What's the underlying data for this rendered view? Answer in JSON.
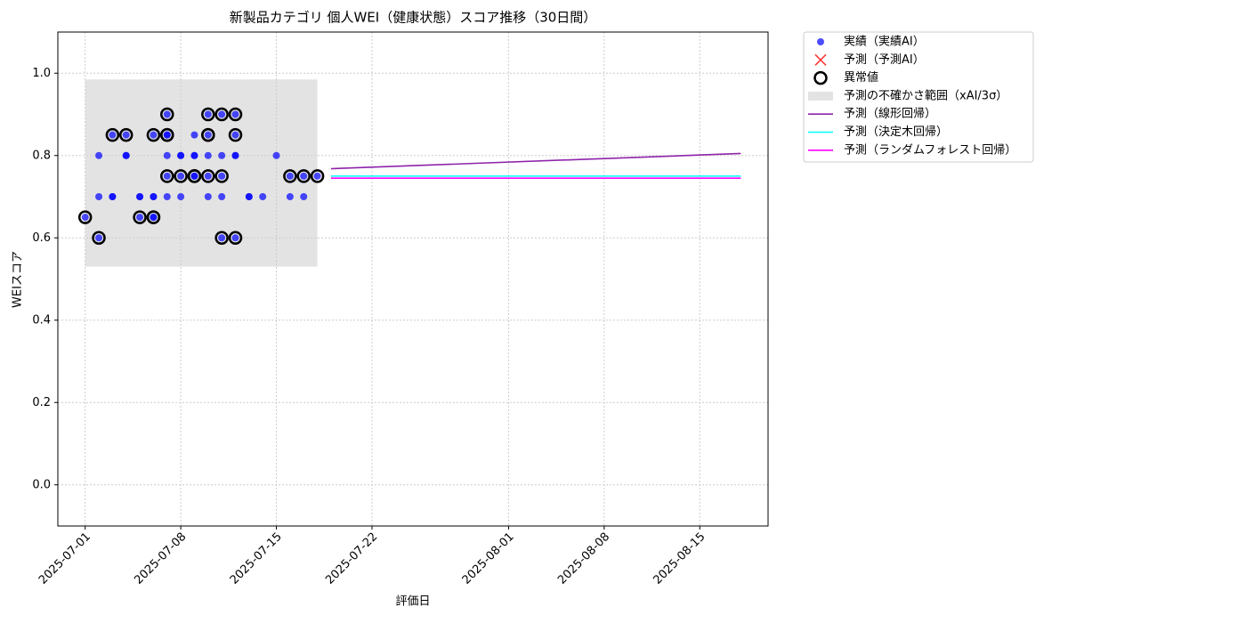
{
  "chart_data": {
    "type": "scatter",
    "title": "新製品カテゴリ 個人WEI（健康状態）スコア推移（30日間）",
    "x_label": "評価日",
    "y_label": "WEIスコア",
    "xlim": [
      "2025-06-29",
      "2025-08-20"
    ],
    "xticks": [
      "2025-07-01",
      "2025-07-08",
      "2025-07-15",
      "2025-07-22",
      "2025-08-01",
      "2025-08-08",
      "2025-08-15"
    ],
    "ylim": [
      -0.1,
      1.1
    ],
    "yticks": [
      {
        "value": 0.0,
        "label": "0.0"
      },
      0.2,
      0.4,
      0.6,
      0.8,
      {
        "value": 1.0,
        "label": "1.0"
      }
    ],
    "grid": true,
    "legend": "outside-upper-right",
    "series": [
      {
        "name": "実績（実績AI）",
        "type": "scatter",
        "marker": "dot",
        "color": "#0000ff",
        "x": [
          "2025-07-01",
          "2025-07-02",
          "2025-07-02",
          "2025-07-02",
          "2025-07-03",
          "2025-07-03",
          "2025-07-03",
          "2025-07-04",
          "2025-07-04",
          "2025-07-04",
          "2025-07-05",
          "2025-07-05",
          "2025-07-05",
          "2025-07-06",
          "2025-07-06",
          "2025-07-06",
          "2025-07-06",
          "2025-07-06",
          "2025-07-07",
          "2025-07-07",
          "2025-07-07",
          "2025-07-07",
          "2025-07-07",
          "2025-07-07",
          "2025-07-08",
          "2025-07-08",
          "2025-07-08",
          "2025-07-08",
          "2025-07-09",
          "2025-07-09",
          "2025-07-09",
          "2025-07-09",
          "2025-07-09",
          "2025-07-10",
          "2025-07-10",
          "2025-07-10",
          "2025-07-10",
          "2025-07-10",
          "2025-07-11",
          "2025-07-11",
          "2025-07-11",
          "2025-07-11",
          "2025-07-11",
          "2025-07-12",
          "2025-07-12",
          "2025-07-12",
          "2025-07-12",
          "2025-07-12",
          "2025-07-13",
          "2025-07-13",
          "2025-07-14",
          "2025-07-15",
          "2025-07-16",
          "2025-07-16",
          "2025-07-17",
          "2025-07-17",
          "2025-07-18"
        ],
        "values": [
          0.65,
          0.8,
          0.7,
          0.6,
          0.7,
          0.7,
          0.85,
          0.8,
          0.8,
          0.85,
          0.7,
          0.7,
          0.65,
          0.7,
          0.85,
          0.65,
          0.7,
          0.65,
          0.8,
          0.85,
          0.9,
          0.85,
          0.7,
          0.75,
          0.8,
          0.75,
          0.8,
          0.7,
          0.75,
          0.8,
          0.75,
          0.8,
          0.85,
          0.85,
          0.8,
          0.9,
          0.75,
          0.7,
          0.9,
          0.8,
          0.75,
          0.7,
          0.6,
          0.85,
          0.8,
          0.8,
          0.9,
          0.6,
          0.7,
          0.7,
          0.7,
          0.8,
          0.75,
          0.7,
          0.75,
          0.7,
          0.75
        ]
      },
      {
        "name": "予測（予測AI）",
        "type": "scatter",
        "marker": "x",
        "color": "#ff0000",
        "x": [],
        "values": []
      },
      {
        "name": "異常値",
        "type": "scatter",
        "marker": "ring",
        "color": "#000000",
        "x": [
          "2025-07-01",
          "2025-07-02",
          "2025-07-03",
          "2025-07-04",
          "2025-07-05",
          "2025-07-06",
          "2025-07-06",
          "2025-07-06",
          "2025-07-07",
          "2025-07-07",
          "2025-07-07",
          "2025-07-07",
          "2025-07-08",
          "2025-07-09",
          "2025-07-09",
          "2025-07-09",
          "2025-07-10",
          "2025-07-10",
          "2025-07-10",
          "2025-07-10",
          "2025-07-11",
          "2025-07-11",
          "2025-07-11",
          "2025-07-12",
          "2025-07-12",
          "2025-07-12",
          "2025-07-16",
          "2025-07-17",
          "2025-07-18"
        ],
        "values": [
          0.65,
          0.6,
          0.85,
          0.85,
          0.65,
          0.85,
          0.65,
          0.65,
          0.85,
          0.9,
          0.85,
          0.75,
          0.75,
          0.75,
          0.75,
          0.75,
          0.85,
          0.85,
          0.9,
          0.75,
          0.9,
          0.75,
          0.6,
          0.85,
          0.9,
          0.6,
          0.75,
          0.75,
          0.75
        ]
      },
      {
        "name": "予測の不確かさ範囲（xAI/3σ）",
        "type": "band",
        "color": "#cccccc",
        "x": [
          "2025-07-01",
          "2025-07-18"
        ],
        "upper": [
          0.985,
          0.985
        ],
        "lower": [
          0.53,
          0.53
        ]
      },
      {
        "name": "予測（線形回帰）",
        "type": "line",
        "color": "#8e24aa",
        "x": [
          "2025-07-19",
          "2025-08-18"
        ],
        "values": [
          0.768,
          0.805
        ]
      },
      {
        "name": "予測（決定木回帰）",
        "type": "line",
        "color": "#00ffff",
        "x": [
          "2025-07-19",
          "2025-08-18"
        ],
        "values": [
          0.75,
          0.75
        ]
      },
      {
        "name": "予測（ランダムフォレスト回帰）",
        "type": "line",
        "color": "#ff00ff",
        "x": [
          "2025-07-19",
          "2025-08-18"
        ],
        "values": [
          0.745,
          0.745
        ]
      }
    ]
  }
}
